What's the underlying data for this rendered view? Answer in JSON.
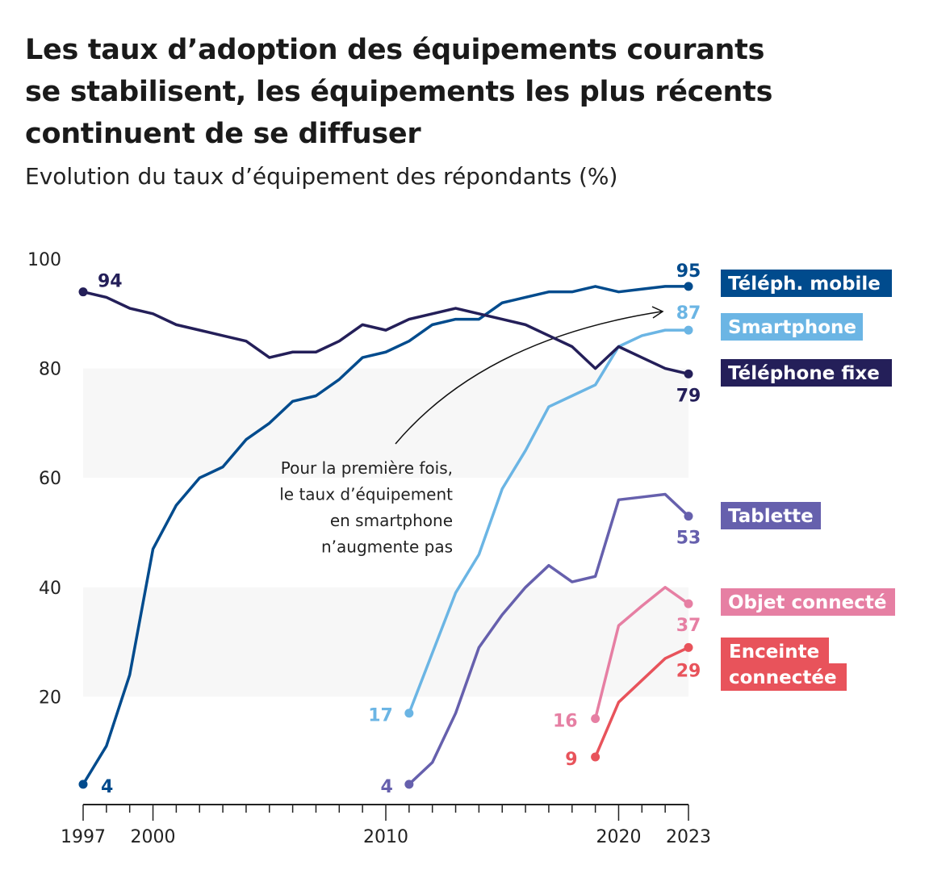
{
  "title": "Les taux d’adoption des équipements courants se stabilisent, les équipements les plus récents continuent de se diffuser",
  "subtitle": "Evolution du taux d’équipement des répondants (%)",
  "chart_data": {
    "type": "line",
    "title": "Les taux d’adoption des équipements courants se stabilisent, les équipements les plus récents continuent de se diffuser",
    "subtitle": "Evolution du taux d’équipement des répondants (%)",
    "xlim": [
      1997,
      2023
    ],
    "ylim": [
      0,
      100
    ],
    "x_ticks": [
      1997,
      2000,
      2010,
      2020,
      2023
    ],
    "y_ticks": [
      20,
      40,
      60,
      80,
      100
    ],
    "shaded_bands": [
      [
        20,
        40
      ],
      [
        60,
        80
      ]
    ],
    "legend_placement": "right (direct labels)",
    "series": [
      {
        "name": "Téléph. mobile",
        "color": "#004b8d",
        "start_label": "4",
        "end_label": "95",
        "x": [
          1997,
          1998,
          1999,
          2000,
          2001,
          2002,
          2003,
          2004,
          2005,
          2006,
          2007,
          2008,
          2009,
          2010,
          2011,
          2012,
          2013,
          2014,
          2015,
          2016,
          2017,
          2018,
          2019,
          2020,
          2021,
          2022,
          2023
        ],
        "y": [
          4,
          11,
          24,
          47,
          55,
          60,
          62,
          67,
          70,
          74,
          75,
          78,
          82,
          83,
          85,
          88,
          89,
          89,
          92,
          93,
          94,
          94,
          95,
          94,
          94.5,
          95,
          95
        ]
      },
      {
        "name": "Smartphone",
        "color": "#6bb5e4",
        "start_label": "17",
        "end_label": "87",
        "x": [
          2011,
          2012,
          2013,
          2014,
          2015,
          2016,
          2017,
          2018,
          2019,
          2020,
          2021,
          2022,
          2023
        ],
        "y": [
          17,
          28,
          39,
          46,
          58,
          65,
          73,
          75,
          77,
          84,
          86,
          87,
          87
        ]
      },
      {
        "name": "Téléphone fixe",
        "color": "#241f59",
        "start_label": "94",
        "end_label": "79",
        "x": [
          1997,
          1998,
          1999,
          2000,
          2001,
          2002,
          2003,
          2004,
          2005,
          2006,
          2007,
          2008,
          2009,
          2010,
          2011,
          2012,
          2013,
          2014,
          2015,
          2016,
          2017,
          2018,
          2019,
          2020,
          2021,
          2022,
          2023
        ],
        "y": [
          94,
          93,
          91,
          90,
          88,
          87,
          86,
          85,
          82,
          83,
          83,
          85,
          88,
          87,
          89,
          90,
          91,
          90,
          89,
          88,
          86,
          84,
          80,
          84,
          82,
          80,
          79
        ]
      },
      {
        "name": "Tablette",
        "color": "#6660ad",
        "start_label": "4",
        "end_label": "53",
        "x": [
          2011,
          2012,
          2013,
          2014,
          2015,
          2016,
          2017,
          2018,
          2019,
          2020,
          2021,
          2022,
          2023
        ],
        "y": [
          4,
          8,
          17,
          29,
          35,
          40,
          44,
          41,
          42,
          56,
          56.5,
          57,
          53
        ]
      },
      {
        "name": "Objet connecté",
        "color": "#e67fa3",
        "start_label": "16",
        "end_label": "37",
        "x": [
          2019,
          2020,
          2021,
          2022,
          2023
        ],
        "y": [
          16,
          33,
          36.6,
          40,
          37
        ]
      },
      {
        "name": "Enceinte connectée",
        "color": "#e8535b",
        "start_label": "9",
        "end_label": "29",
        "x": [
          2019,
          2020,
          2021,
          2022,
          2023
        ],
        "y": [
          9,
          19,
          23,
          27,
          29
        ]
      }
    ],
    "annotation": {
      "lines": [
        "Pour la première fois,",
        "le taux d’équipement",
        "en smartphone",
        "n’augmente pas"
      ],
      "points_to": {
        "series": "Smartphone",
        "x": 2023
      }
    }
  }
}
